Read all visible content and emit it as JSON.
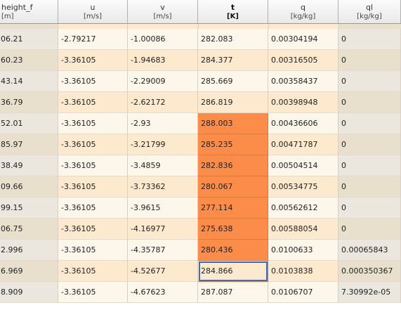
{
  "columns": [
    {
      "name": "height_f",
      "unit": "[m]"
    },
    {
      "name": "u",
      "unit": "[m/s]"
    },
    {
      "name": "v",
      "unit": "[m/s]"
    },
    {
      "name": "t",
      "unit": "[K]"
    },
    {
      "name": "q",
      "unit": "[kg/kg]"
    },
    {
      "name": "ql",
      "unit": "[kg/kg]"
    }
  ],
  "rows": [
    [
      "06.21",
      "-2.79217",
      "-1.00086",
      "282.083",
      "0.00304194",
      "0"
    ],
    [
      "60.23",
      "-3.36105",
      "-1.94683",
      "284.377",
      "0.00316505",
      "0"
    ],
    [
      "43.14",
      "-3.36105",
      "-2.29009",
      "285.669",
      "0.00358437",
      "0"
    ],
    [
      "36.79",
      "-3.36105",
      "-2.62172",
      "286.819",
      "0.00398948",
      "0"
    ],
    [
      "52.01",
      "-3.36105",
      "-2.93",
      "288.003",
      "0.00436606",
      "0"
    ],
    [
      "85.97",
      "-3.36105",
      "-3.21799",
      "285.235",
      "0.00471787",
      "0"
    ],
    [
      "38.49",
      "-3.36105",
      "-3.4859",
      "282.836",
      "0.00504514",
      "0"
    ],
    [
      "09.66",
      "-3.36105",
      "-3.73362",
      "280.067",
      "0.00534775",
      "0"
    ],
    [
      "99.15",
      "-3.36105",
      "-3.9615",
      "277.114",
      "0.00562612",
      "0"
    ],
    [
      "06.75",
      "-3.36105",
      "-4.16977",
      "275.638",
      "0.00588054",
      "0"
    ],
    [
      "2.996",
      "-3.36105",
      "-4.35787",
      "280.436",
      "0.0100633",
      "0.00065843"
    ],
    [
      "6.969",
      "-3.36105",
      "-4.52677",
      "284.866",
      "0.0103838",
      "0.000350367"
    ],
    [
      "8.909",
      "-3.36105",
      "-4.67623",
      "287.087",
      "0.0106707",
      "7.30992e-05"
    ]
  ]
}
